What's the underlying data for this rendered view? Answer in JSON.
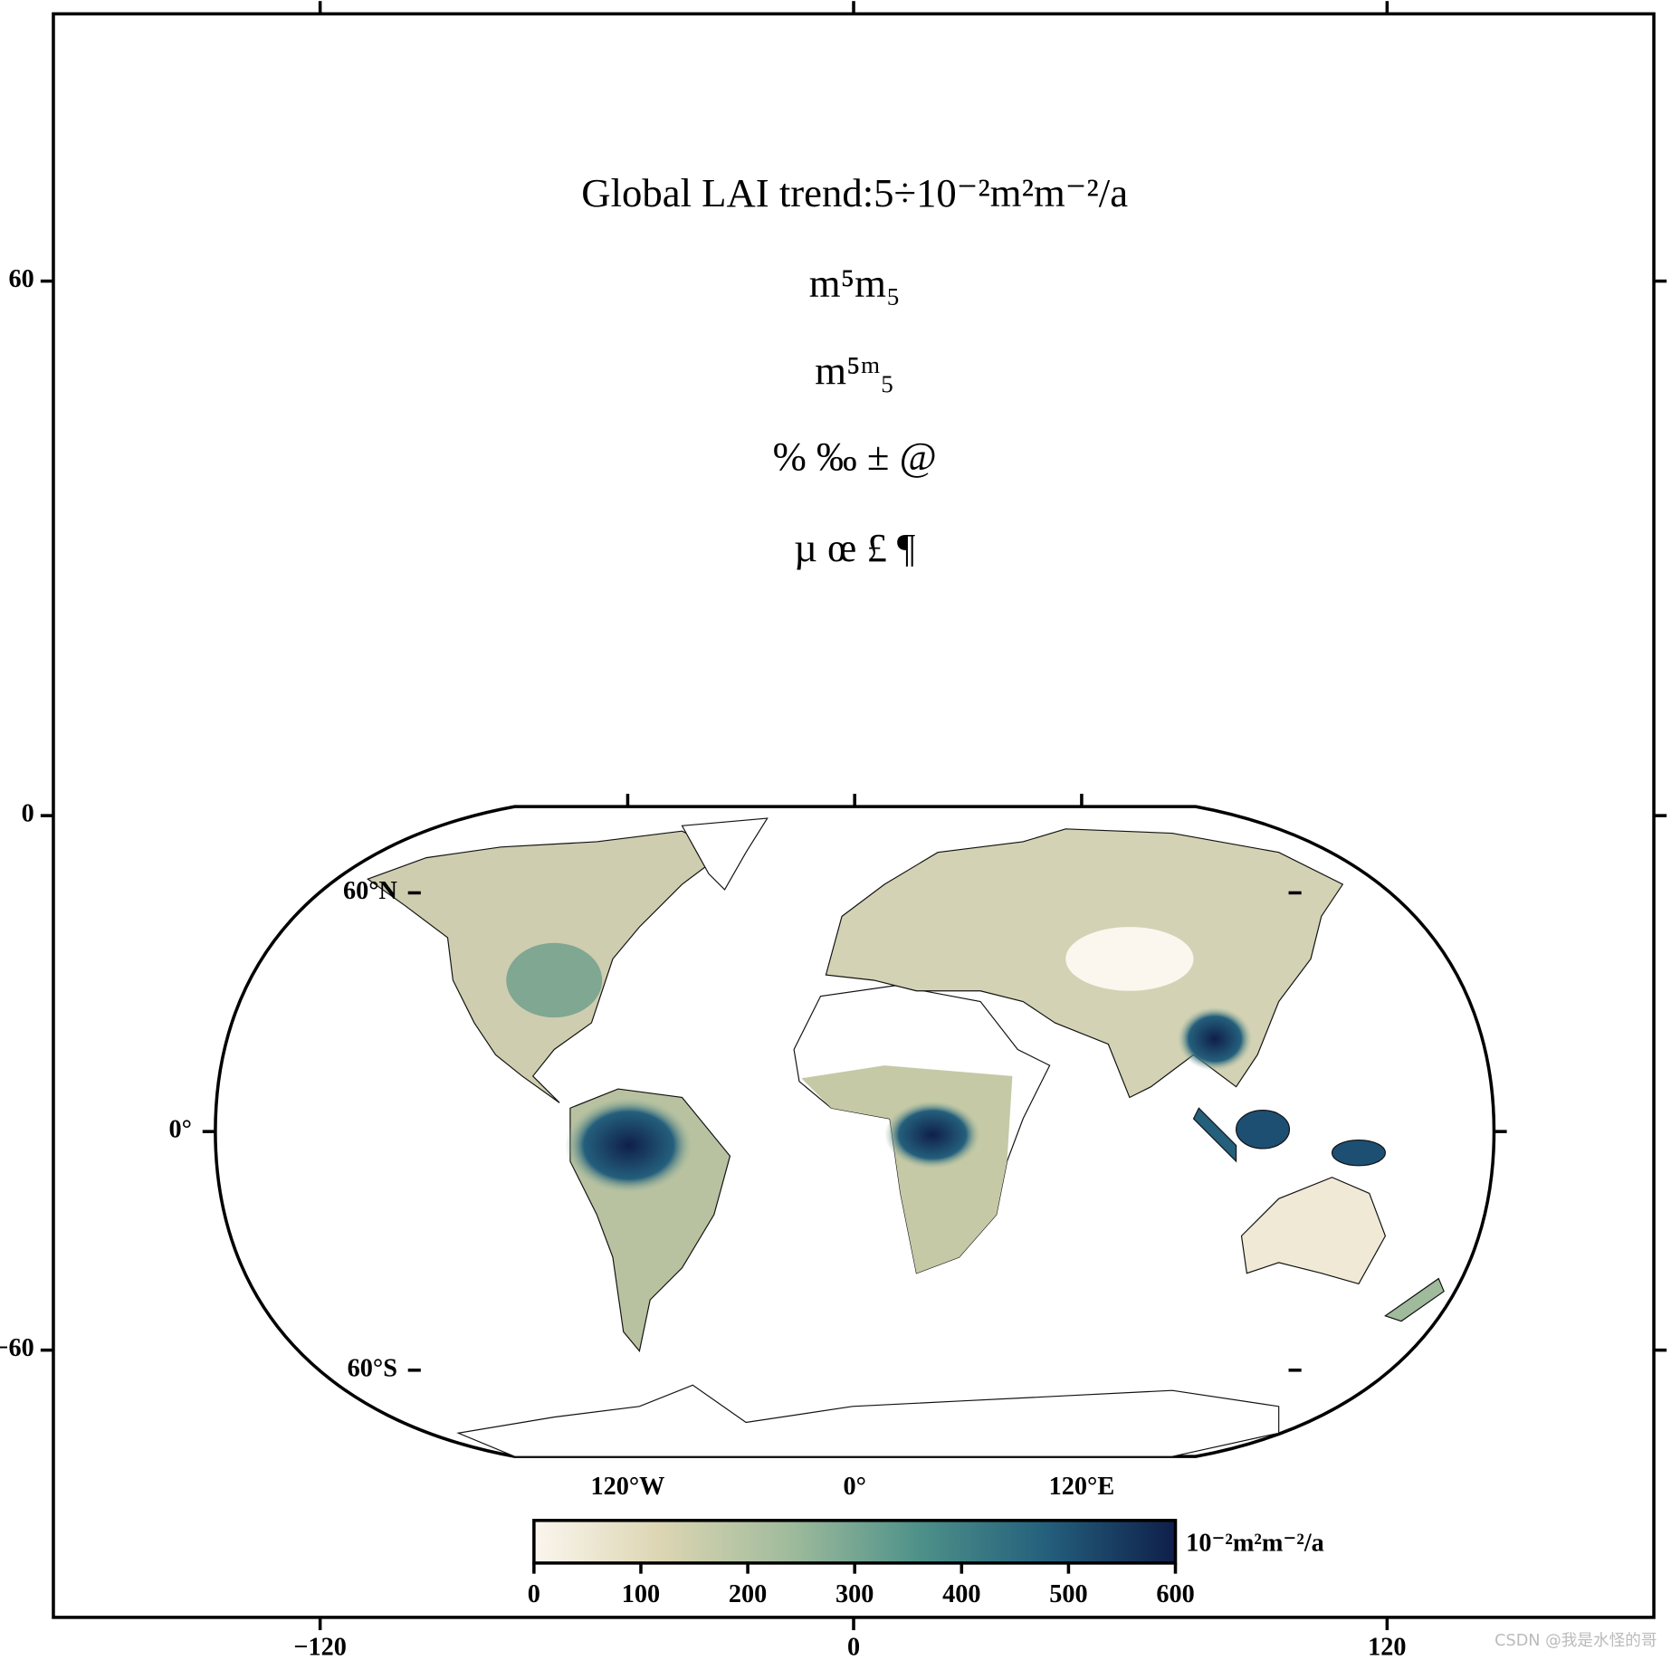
{
  "chart_data": {
    "type": "map",
    "annotations": [
      "Global LAI trend:5÷10⁻²m²m⁻²/a",
      "m⁵m₅",
      "m⁵ᵐ₅",
      "% ‰ ± @",
      "µ œ £ ¶"
    ],
    "xlim": [
      -180,
      180
    ],
    "ylim": [
      -90,
      90
    ],
    "xticks": [
      {
        "value": -120,
        "label": "−120"
      },
      0,
      120
    ],
    "yticks": [
      60,
      0,
      {
        "value": -60,
        "label": "−60"
      }
    ],
    "lonticks": [
      {
        "value": -120,
        "label": "120°W"
      },
      {
        "value": 0,
        "label": "0°"
      },
      {
        "value": 120,
        "label": "120°E"
      }
    ],
    "latticks": [
      {
        "value": 60,
        "label": "60°N"
      },
      {
        "value": 0,
        "label": "0°"
      },
      {
        "value": -60,
        "label": "60°S"
      }
    ],
    "colorbar": {
      "lim": [
        0,
        600
      ],
      "ticks": [
        0,
        100,
        200,
        300,
        400,
        500,
        600
      ],
      "label": "10⁻²m²m⁻²/a",
      "colormap": [
        "#fbf6ee",
        "#dcd5b2",
        "#9fbb9c",
        "#4e9189",
        "#245f7c",
        "#0f1f4a"
      ]
    },
    "watermark": "CSDN @我是水怪的哥"
  }
}
